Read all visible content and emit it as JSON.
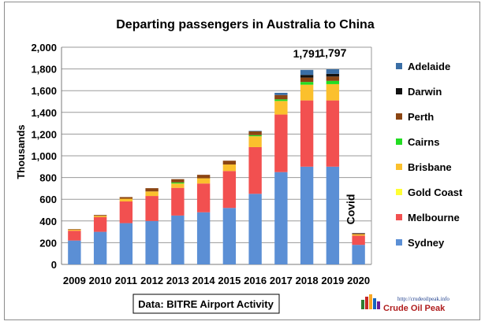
{
  "chart_data": {
    "type": "bar",
    "stacked": true,
    "title": "Departing passengers in Australia to China",
    "ylabel": "Thousands",
    "xlabel": "",
    "ylim": [
      0,
      2000
    ],
    "yticks": [
      "0",
      "200",
      "400",
      "600",
      "800",
      "1,000",
      "1,200",
      "1,400",
      "1,600",
      "1,800",
      "2,000"
    ],
    "grid": true,
    "legend_position": "right",
    "categories": [
      "2009",
      "2010",
      "2011",
      "2012",
      "2013",
      "2014",
      "2015",
      "2016",
      "2017",
      "2018",
      "2019",
      "2020"
    ],
    "series": [
      {
        "name": "Sydney",
        "color": "#5b8fd5",
        "values": [
          220,
          300,
          380,
          400,
          450,
          480,
          520,
          650,
          850,
          900,
          900,
          180
        ]
      },
      {
        "name": "Melbourne",
        "color": "#f25050",
        "values": [
          90,
          135,
          200,
          230,
          255,
          265,
          340,
          430,
          530,
          610,
          610,
          85
        ]
      },
      {
        "name": "Gold Coast",
        "color": "#ffff33",
        "values": [
          0,
          0,
          0,
          0,
          0,
          0,
          0,
          0,
          0,
          0,
          0,
          0
        ]
      },
      {
        "name": "Brisbane",
        "color": "#fbc02d",
        "values": [
          10,
          12,
          25,
          42,
          40,
          48,
          60,
          100,
          125,
          145,
          150,
          12
        ]
      },
      {
        "name": "Cairns",
        "color": "#22dd22",
        "values": [
          0,
          0,
          0,
          0,
          10,
          0,
          0,
          10,
          15,
          25,
          30,
          0
        ]
      },
      {
        "name": "Perth",
        "color": "#8b4513",
        "values": [
          5,
          8,
          15,
          30,
          30,
          32,
          35,
          35,
          40,
          40,
          40,
          10
        ]
      },
      {
        "name": "Darwin",
        "color": "#111111",
        "values": [
          0,
          0,
          0,
          0,
          0,
          0,
          0,
          0,
          0,
          25,
          25,
          0
        ]
      },
      {
        "name": "Adelaide",
        "color": "#3a6ea5",
        "values": [
          0,
          0,
          0,
          0,
          0,
          0,
          0,
          5,
          20,
          46,
          42,
          3
        ]
      }
    ],
    "legend_order": [
      "Adelaide",
      "Darwin",
      "Perth",
      "Cairns",
      "Brisbane",
      "Gold Coast",
      "Melbourne",
      "Sydney"
    ],
    "annotations": [
      {
        "category": "2018",
        "text": "1,791"
      },
      {
        "category": "2019",
        "text": "1,797"
      },
      {
        "category": "2020",
        "text": "Covid"
      }
    ],
    "source_label": "Data: BITRE Airport Activity"
  },
  "logo": {
    "url": "http://crudeoilpeak.info",
    "name": "Crude Oil Peak"
  }
}
